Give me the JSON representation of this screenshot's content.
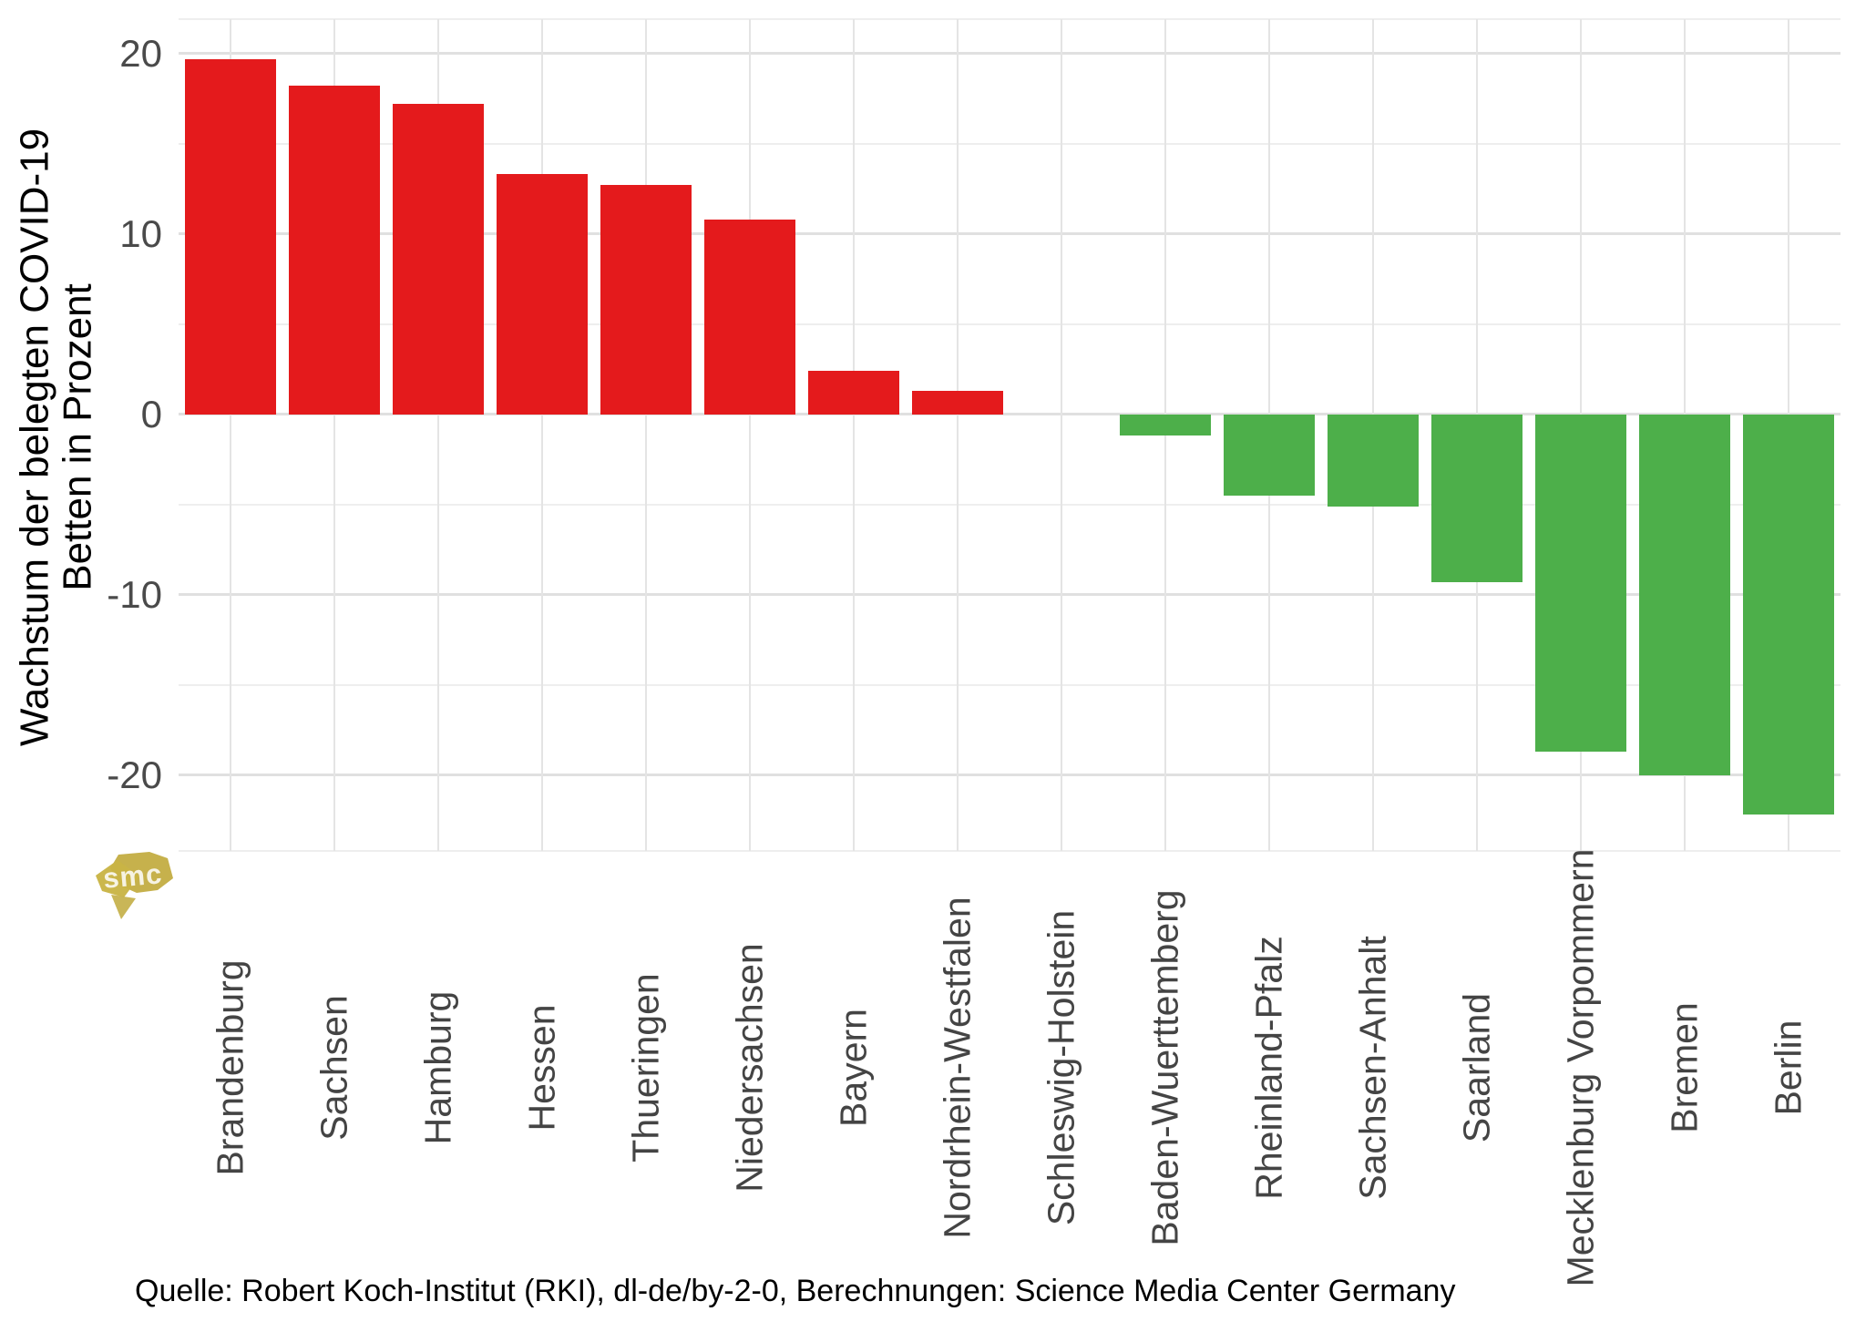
{
  "chart_data": {
    "type": "bar",
    "title": "",
    "categories": [
      "Brandenburg",
      "Sachsen",
      "Hamburg",
      "Hessen",
      "Thueringen",
      "Niedersachsen",
      "Bayern",
      "Nordrhein-Westfalen",
      "Schleswig-Holstein",
      "Baden-Wuerttemberg",
      "Rheinland-Pfalz",
      "Sachsen-Anhalt",
      "Saarland",
      "Mecklenburg Vorpommern",
      "Bremen",
      "Berlin"
    ],
    "values": [
      19.7,
      18.2,
      17.2,
      13.3,
      12.7,
      10.8,
      2.4,
      1.3,
      0,
      -1.2,
      -4.5,
      -5.1,
      -9.3,
      -18.7,
      -20.0,
      -22.2
    ],
    "ylabel_lines": [
      "Wachstum der belegten COVID-19",
      "Betten in Prozent"
    ],
    "xlabel": "",
    "y_major_ticks": [
      20,
      10,
      0,
      -10,
      -20
    ],
    "y_minor_ticks": [
      15,
      5,
      -5,
      -15
    ],
    "ylim": [
      -24.2,
      21.9
    ],
    "grid": "on",
    "legend": "none",
    "bar_width_ratio": 0.87,
    "colors": {
      "positive_bar": "#e41a1c",
      "negative_bar": "#4daf4a",
      "grid_major": "#e0e0e0",
      "grid_minor": "#eeeeee",
      "axis_text": "#444444"
    }
  },
  "footer": {
    "source_text": "Quelle: Robert Koch-Institut (RKI), dl-de/by-2-0, Berechnungen: Science Media Center Germany"
  },
  "logo": {
    "text": "smc",
    "color": "#c6b14c"
  }
}
